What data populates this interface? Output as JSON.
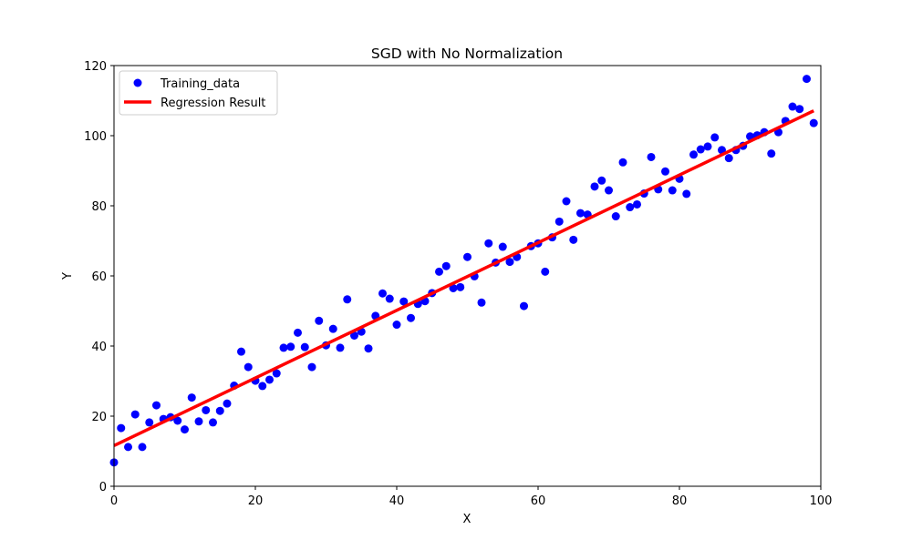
{
  "chart_data": {
    "type": "scatter",
    "title": "SGD with No Normalization",
    "xlabel": "X",
    "ylabel": "Y",
    "xlim": [
      0,
      100
    ],
    "ylim": [
      0,
      120
    ],
    "xticks": [
      0,
      20,
      40,
      60,
      80,
      100
    ],
    "yticks": [
      0,
      20,
      40,
      60,
      80,
      100,
      120
    ],
    "grid": false,
    "legend_position": "top-left",
    "series": [
      {
        "name": "Training_data",
        "kind": "scatter",
        "color": "#0000ff",
        "x": [
          0,
          1,
          2,
          3,
          4,
          5,
          6,
          7,
          8,
          9,
          10,
          11,
          12,
          13,
          14,
          15,
          16,
          17,
          18,
          19,
          20,
          21,
          22,
          23,
          24,
          25,
          26,
          27,
          28,
          29,
          30,
          31,
          32,
          33,
          34,
          35,
          36,
          37,
          38,
          39,
          40,
          41,
          42,
          43,
          44,
          45,
          46,
          47,
          48,
          49,
          50,
          51,
          52,
          53,
          54,
          55,
          56,
          57,
          58,
          59,
          60,
          61,
          62,
          63,
          64,
          65,
          66,
          67,
          68,
          69,
          70,
          71,
          72,
          73,
          74,
          75,
          76,
          77,
          78,
          79,
          80,
          81,
          82,
          83,
          84,
          85,
          86,
          87,
          88,
          89,
          90,
          91,
          92,
          93,
          94,
          95,
          96,
          97,
          98,
          99
        ],
        "y": [
          6.8,
          16.6,
          11.2,
          20.5,
          11.2,
          18.2,
          23.1,
          19.2,
          19.7,
          18.7,
          16.2,
          25.3,
          18.5,
          21.7,
          18.2,
          21.5,
          23.6,
          28.7,
          38.4,
          34.0,
          30.1,
          28.6,
          30.4,
          32.2,
          39.5,
          39.8,
          43.8,
          39.7,
          34.0,
          47.2,
          40.2,
          44.9,
          39.5,
          53.3,
          43.0,
          44.1,
          39.3,
          48.6,
          55.0,
          53.5,
          46.1,
          52.7,
          48.0,
          52.0,
          52.8,
          55.1,
          61.2,
          62.8,
          56.5,
          56.8,
          65.4,
          59.9,
          52.4,
          69.3,
          63.8,
          68.3,
          64.0,
          65.4,
          51.4,
          68.5,
          69.3,
          61.2,
          71.0,
          75.5,
          81.3,
          70.3,
          77.9,
          77.5,
          85.5,
          87.2,
          84.4,
          77.0,
          92.4,
          79.6,
          80.4,
          83.5,
          93.9,
          84.7,
          89.8,
          84.4,
          87.7,
          83.4,
          94.6,
          96.1,
          96.9,
          99.5,
          95.9,
          93.6,
          95.9,
          97.1,
          99.8,
          100.1,
          101.0,
          94.9,
          101.0,
          104.2,
          108.3,
          107.6,
          116.2,
          103.6
        ]
      },
      {
        "name": "Regression Result",
        "kind": "line",
        "color": "#ff0000",
        "x": [
          0,
          99
        ],
        "y": [
          11.6,
          107.1
        ]
      }
    ]
  }
}
